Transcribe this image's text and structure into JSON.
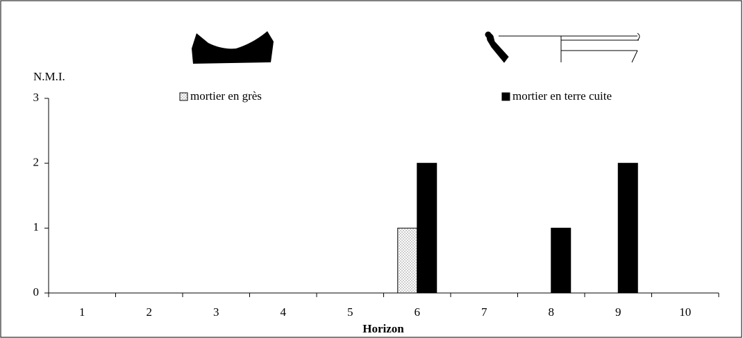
{
  "chart_data": {
    "type": "bar",
    "y_label": "N.M.I.",
    "x_label": "Horizon",
    "categories": [
      "1",
      "2",
      "3",
      "4",
      "5",
      "6",
      "7",
      "8",
      "9",
      "10"
    ],
    "series": [
      {
        "name": "mortier en grès",
        "color": "#808080",
        "values": [
          0,
          0,
          0,
          0,
          0,
          1,
          0,
          0,
          0,
          0
        ]
      },
      {
        "name": "mortier en terre cuite",
        "color": "#000000",
        "values": [
          0,
          0,
          0,
          0,
          0,
          2,
          0,
          1,
          2,
          0
        ]
      }
    ],
    "ylim": [
      0,
      3
    ],
    "yticks": [
      0,
      1,
      2,
      3
    ]
  }
}
